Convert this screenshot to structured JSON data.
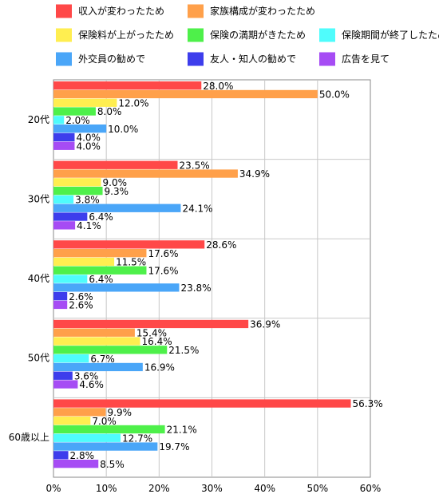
{
  "chart_data": {
    "type": "bar",
    "orientation": "horizontal",
    "categories": [
      "20代",
      "30代",
      "40代",
      "50代",
      "60歳以上"
    ],
    "series": [
      {
        "name": "収入が変わったため",
        "color": "#ff4848",
        "values": [
          28.0,
          23.5,
          28.6,
          36.9,
          56.3
        ],
        "labels": [
          "28.0%",
          "23.5%",
          "28.6%",
          "36.9%",
          "56.3%"
        ]
      },
      {
        "name": "家族構成が変わったため",
        "color": "#ffa04a",
        "values": [
          50.0,
          34.9,
          17.6,
          15.4,
          9.9
        ],
        "labels": [
          "50.0%",
          "34.9%",
          "17.6%",
          "15.4%",
          "9.9%"
        ]
      },
      {
        "name": "保険料が上がったため",
        "color": "#ffee50",
        "values": [
          12.0,
          9.0,
          11.5,
          16.4,
          7.0
        ],
        "labels": [
          "12.0%",
          "9.0%",
          "11.5%",
          "16.4%",
          "7.0%"
        ]
      },
      {
        "name": "保険の満期がきたため",
        "color": "#4ef04a",
        "values": [
          8.0,
          9.3,
          17.6,
          21.5,
          21.1
        ],
        "labels": [
          "8.0%",
          "9.3%",
          "17.6%",
          "21.5%",
          "21.1%"
        ]
      },
      {
        "name": "保険期間が終了したため",
        "color": "#4ffcfc",
        "values": [
          2.0,
          3.8,
          6.4,
          6.7,
          12.7
        ],
        "labels": [
          "2.0%",
          "3.8%",
          "6.4%",
          "6.7%",
          "12.7%"
        ]
      },
      {
        "name": "外交員の勧めで",
        "color": "#4aa6f8",
        "values": [
          10.0,
          24.1,
          23.8,
          16.9,
          19.7
        ],
        "labels": [
          "10.0%",
          "24.1%",
          "23.8%",
          "16.9%",
          "19.7%"
        ]
      },
      {
        "name": "友人・知人の勧めで",
        "color": "#3d3dec",
        "values": [
          4.0,
          6.4,
          2.6,
          3.6,
          2.8
        ],
        "labels": [
          "4.0%",
          "6.4%",
          "2.6%",
          "3.6%",
          "2.8%"
        ]
      },
      {
        "name": "広告を見て",
        "color": "#a64cf4",
        "values": [
          4.0,
          4.1,
          2.6,
          4.6,
          8.5
        ],
        "labels": [
          "4.0%",
          "4.1%",
          "2.6%",
          "4.6%",
          "8.5%"
        ]
      }
    ],
    "xticks": [
      "0%",
      "10%",
      "20%",
      "30%",
      "40%",
      "50%",
      "60%"
    ],
    "xlim": [
      0,
      60
    ],
    "legend_position": "top",
    "grid": true
  }
}
